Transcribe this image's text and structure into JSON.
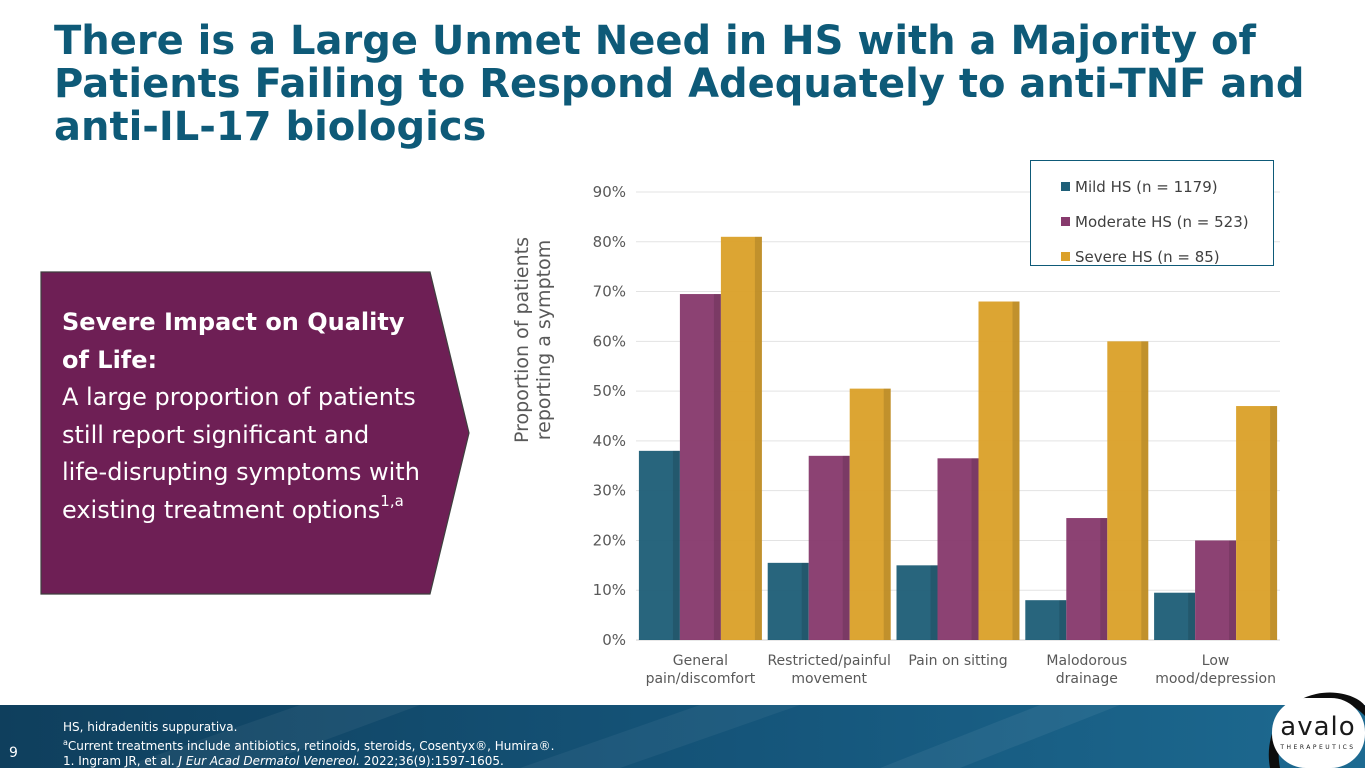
{
  "slide": {
    "title": "There is a Large Unmet Need in HS with a Majority of Patients Failing to Respond Adequately to anti-TNF and anti-IL-17 biologics",
    "page_number": "9"
  },
  "callout": {
    "heading": "Severe Impact on Quality of Life:",
    "body": "A large proportion of patients still report significant and life-disrupting symptoms with existing treatment options",
    "body_superscript": "1,a",
    "background_color": "#6e1f55"
  },
  "footnotes": {
    "abbreviation": "HS, hidradenitis suppurativa.",
    "note_marker": "a",
    "note": "Current treatments include antibiotics, retinoids, steroids, Cosentyx®, Humira®.",
    "ref_prefix": "1. Ingram JR, et al. ",
    "ref_journal": "J Eur Acad Dermatol Venereol.",
    "ref_suffix": " 2022;36(9):1597-1605."
  },
  "logo": {
    "wordmark": "avalo",
    "subtext": "THERAPEUTICS"
  },
  "chart_data": {
    "type": "bar",
    "title": "",
    "xlabel": "",
    "ylabel": "Proportion of patients reporting a symptom",
    "categories": [
      "General pain/discomfort",
      "Restricted/painful movement",
      "Pain on sitting",
      "Malodorous drainage",
      "Low mood/depression"
    ],
    "series": [
      {
        "name": "Mild HS (n = 1179)",
        "color": "#1f5f78",
        "values": [
          38,
          15.5,
          15,
          8,
          9.5
        ]
      },
      {
        "name": "Moderate HS (n = 523)",
        "color": "#873a6d",
        "values": [
          69.5,
          37,
          36.5,
          24.5,
          20
        ]
      },
      {
        "name": "Severe HS (n = 85)",
        "color": "#dba12b",
        "values": [
          81,
          50.5,
          68,
          60,
          47
        ]
      }
    ],
    "ylim": [
      0,
      90
    ],
    "yticks": [
      0,
      10,
      20,
      30,
      40,
      50,
      60,
      70,
      80,
      90
    ],
    "tick_format": "percent",
    "grid": true,
    "legend_position": "top-right"
  }
}
